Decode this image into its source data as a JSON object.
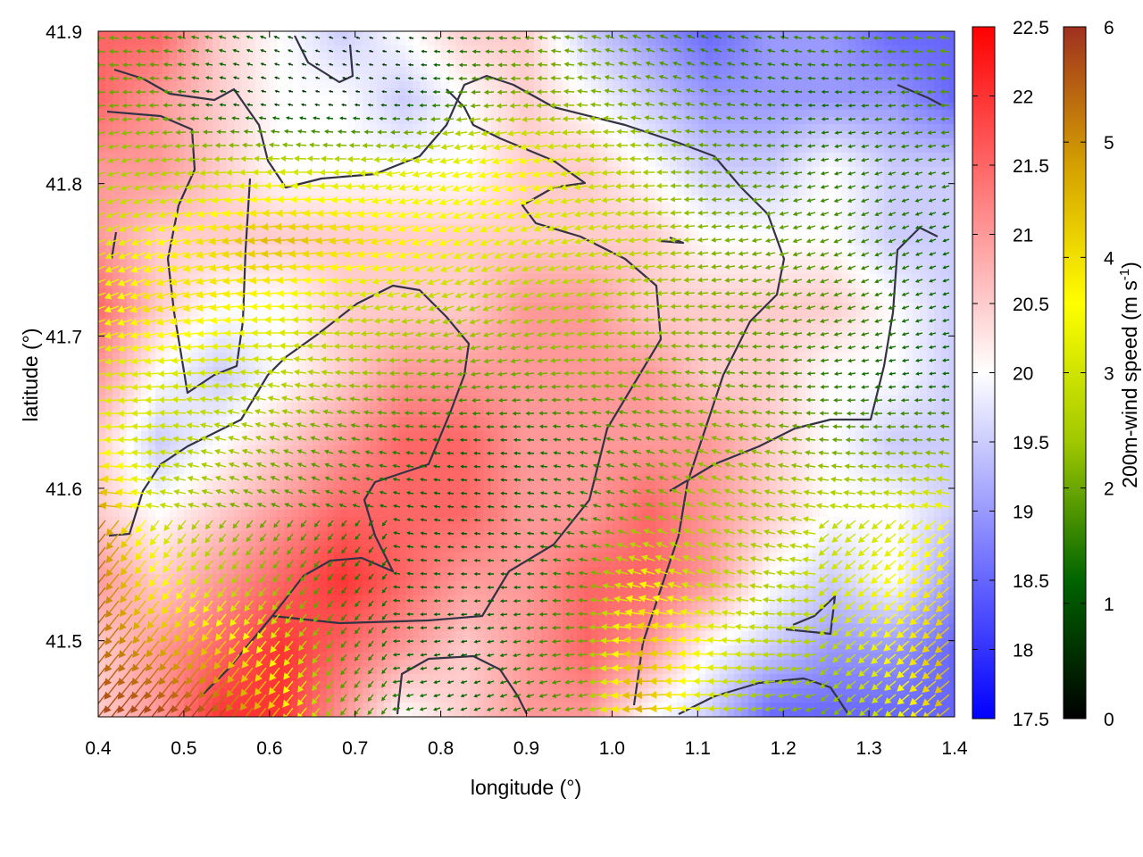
{
  "chart_data": {
    "type": "heatmap",
    "title": "",
    "xlabel": "longitude (°)",
    "ylabel": "latitude (°)",
    "xlim": [
      0.4,
      1.4
    ],
    "ylim": [
      41.45,
      41.9
    ],
    "x_ticks": [
      "0.4",
      "0.5",
      "0.6",
      "0.7",
      "0.8",
      "0.9",
      "1.0",
      "1.1",
      "1.2",
      "1.3",
      "1.4"
    ],
    "y_ticks": [
      "41.5",
      "41.6",
      "41.7",
      "41.8",
      "41.9"
    ],
    "temperature_colorbar": {
      "range": [
        17.5,
        22.5
      ],
      "ticks": [
        "17.5",
        "18",
        "18.5",
        "19",
        "19.5",
        "20",
        "20.5",
        "21",
        "21.5",
        "22",
        "22.5"
      ],
      "colors": [
        "#0000ff",
        "#ffffff",
        "#ff0000"
      ]
    },
    "wind_colorbar": {
      "label": "200m-wind speed (m s",
      "label_sup": "-1",
      "label_end": ")",
      "range": [
        0,
        6
      ],
      "ticks": [
        "0",
        "1",
        "2",
        "3",
        "4",
        "5",
        "6"
      ],
      "colors": [
        "#000000",
        "#006400",
        "#a0c800",
        "#ffff00",
        "#d4a000",
        "#a03020"
      ]
    },
    "temperature_field": [
      [
        21.5,
        21.5,
        20.5,
        20.0,
        19.5,
        20.0,
        20.5,
        20.5,
        19.5,
        19.0,
        18.5,
        19.0,
        19.0,
        18.5,
        18.5
      ],
      [
        21.5,
        21.0,
        20.5,
        20.0,
        20.0,
        19.5,
        20.0,
        20.5,
        20.0,
        19.5,
        19.0,
        19.0,
        19.0,
        19.0,
        18.5
      ],
      [
        21.0,
        21.0,
        20.5,
        20.0,
        20.0,
        20.0,
        20.0,
        20.5,
        20.5,
        20.0,
        19.5,
        19.5,
        20.0,
        19.5,
        19.5
      ],
      [
        21.0,
        20.5,
        20.5,
        20.5,
        20.5,
        20.5,
        20.5,
        20.5,
        20.5,
        20.5,
        20.0,
        20.0,
        20.0,
        19.5,
        19.5
      ],
      [
        21.5,
        20.5,
        20.0,
        20.0,
        20.5,
        20.5,
        20.5,
        21.0,
        21.0,
        20.5,
        20.5,
        20.5,
        20.5,
        20.0,
        19.5
      ],
      [
        21.0,
        20.0,
        19.5,
        20.0,
        20.5,
        21.0,
        21.0,
        21.0,
        21.0,
        21.0,
        20.5,
        20.5,
        20.0,
        20.0,
        19.5
      ],
      [
        20.5,
        19.5,
        20.0,
        20.5,
        21.0,
        21.5,
        21.5,
        21.0,
        21.0,
        21.0,
        21.0,
        20.5,
        20.0,
        19.5,
        19.5
      ],
      [
        20.5,
        20.0,
        20.5,
        21.0,
        21.5,
        21.5,
        21.5,
        21.0,
        21.0,
        21.5,
        21.0,
        20.5,
        20.0,
        20.0,
        19.5
      ],
      [
        21.0,
        20.5,
        21.0,
        21.5,
        22.0,
        21.5,
        21.0,
        21.0,
        21.5,
        21.5,
        21.0,
        20.0,
        19.5,
        20.0,
        19.0
      ],
      [
        20.5,
        21.0,
        21.5,
        22.0,
        21.5,
        21.0,
        20.5,
        21.0,
        21.5,
        21.0,
        20.0,
        19.5,
        19.0,
        19.0,
        18.5
      ],
      [
        20.5,
        21.0,
        22.0,
        22.0,
        21.0,
        20.0,
        20.5,
        21.0,
        21.0,
        20.0,
        19.5,
        18.5,
        18.5,
        18.5,
        18.5
      ]
    ],
    "wind_field": [
      [
        2.0,
        1.8,
        1.5,
        1.0,
        0.5,
        0.5,
        1.2,
        1.8,
        2.0,
        1.8,
        1.5,
        1.5,
        1.8,
        1.8,
        2.0
      ],
      [
        2.0,
        2.0,
        1.0,
        0.6,
        0.5,
        0.8,
        1.8,
        2.2,
        2.2,
        2.0,
        1.8,
        1.5,
        1.2,
        1.5,
        1.8
      ],
      [
        2.5,
        2.5,
        2.8,
        3.0,
        3.0,
        3.2,
        3.5,
        3.8,
        3.0,
        2.5,
        2.0,
        1.8,
        1.5,
        1.5,
        1.5
      ],
      [
        3.0,
        3.5,
        4.0,
        4.5,
        4.2,
        3.8,
        3.5,
        3.2,
        3.0,
        2.8,
        2.2,
        2.0,
        1.8,
        1.5,
        1.2
      ],
      [
        3.2,
        4.0,
        3.8,
        3.5,
        3.0,
        2.8,
        2.6,
        2.5,
        2.5,
        2.4,
        2.2,
        2.0,
        1.8,
        1.5,
        1.2
      ],
      [
        3.0,
        3.2,
        3.0,
        2.8,
        2.5,
        2.2,
        2.0,
        2.0,
        2.2,
        2.2,
        2.0,
        1.8,
        1.5,
        1.2,
        1.2
      ],
      [
        3.5,
        3.0,
        2.6,
        2.2,
        1.8,
        1.5,
        1.2,
        1.2,
        1.5,
        1.8,
        2.2,
        2.2,
        2.0,
        2.0,
        2.0
      ],
      [
        5.5,
        3.0,
        2.2,
        1.8,
        1.5,
        1.2,
        1.0,
        1.2,
        1.5,
        2.0,
        2.5,
        2.4,
        2.8,
        3.0,
        3.5
      ],
      [
        5.5,
        3.8,
        2.8,
        2.2,
        1.5,
        1.2,
        1.0,
        1.2,
        1.8,
        3.5,
        2.8,
        2.6,
        3.0,
        3.5,
        4.0
      ],
      [
        5.5,
        5.0,
        4.5,
        3.5,
        1.8,
        1.2,
        1.0,
        1.5,
        2.0,
        4.5,
        3.5,
        2.8,
        2.6,
        3.5,
        4.5
      ],
      [
        5.8,
        6.0,
        6.0,
        4.5,
        2.0,
        1.5,
        1.2,
        1.5,
        2.0,
        4.8,
        3.0,
        2.2,
        2.0,
        3.0,
        4.5
      ]
    ],
    "grid": false,
    "legend": "right"
  }
}
